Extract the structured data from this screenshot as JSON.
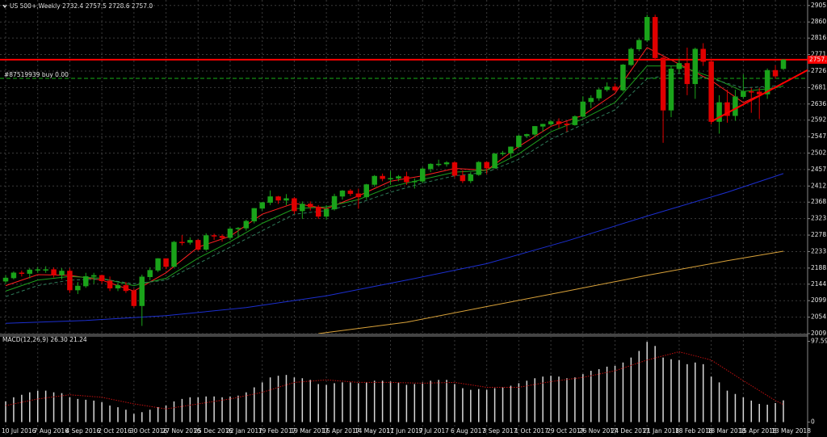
{
  "chart_data": {
    "type": "candlestick",
    "header": "US 500+,Weekly  2732.4 2757.5 2728.6 2757.0",
    "categories": [
      "10 Jul 2016",
      null,
      null,
      null,
      "7 Aug 2016",
      null,
      null,
      null,
      "4 Sep 2016",
      null,
      null,
      null,
      "2 Oct 2016",
      null,
      null,
      null,
      "30 Oct 2016",
      null,
      null,
      null,
      "27 Nov 2016",
      null,
      null,
      null,
      "25 Dec 2016",
      null,
      null,
      null,
      "22 Jan 2017",
      null,
      null,
      null,
      "19 Feb 2017",
      null,
      null,
      null,
      "19 Mar 2017",
      null,
      null,
      null,
      "16 Apr 2017",
      null,
      null,
      null,
      "14 May 2017",
      null,
      null,
      null,
      "11 Jun 2017",
      null,
      null,
      null,
      "9 Jul 2017",
      null,
      null,
      null,
      "6 Aug 2017",
      null,
      null,
      null,
      "3 Sep 2017",
      null,
      null,
      null,
      "1 Oct 2017",
      null,
      null,
      null,
      "29 Oct 2017",
      null,
      null,
      null,
      "26 Nov 2017",
      null,
      null,
      null,
      "24 Dec 2017",
      null,
      null,
      null,
      "21 Jan 2018",
      null,
      null,
      null,
      "18 Feb 2018",
      null,
      null,
      null,
      "18 Mar 2018",
      null,
      null,
      null,
      "15 Apr 2018",
      null,
      null,
      null,
      "13 May 2018",
      null
    ],
    "open": [
      2152,
      2161,
      2175,
      2173,
      2183,
      2184,
      2184,
      2169,
      2180,
      2128,
      2139,
      2165,
      2168,
      2153,
      2133,
      2141,
      2126,
      2085,
      2164,
      2182,
      2214,
      2192,
      2259,
      2258,
      2264,
      2239,
      2277,
      2275,
      2271,
      2295,
      2297,
      2316,
      2351,
      2367,
      2383,
      2373,
      2378,
      2344,
      2363,
      2355,
      2329,
      2349,
      2384,
      2399,
      2391,
      2382,
      2416,
      2439,
      2432,
      2433,
      2438,
      2423,
      2425,
      2459,
      2472,
      2472,
      2476,
      2441,
      2426,
      2443,
      2477,
      2461,
      2500,
      2502,
      2519,
      2549,
      2553,
      2575,
      2581,
      2588,
      2582,
      2579,
      2602,
      2642,
      2652,
      2675,
      2683,
      2674,
      2743,
      2786,
      2810,
      2873,
      2762,
      2619,
      2732,
      2747,
      2691,
      2786,
      2752,
      2588,
      2640,
      2604,
      2656,
      2670,
      2669,
      2663,
      2728,
      2732.4
    ],
    "high": [
      2169,
      2179,
      2181,
      2188,
      2191,
      2193,
      2190,
      2188,
      2188,
      2150,
      2175,
      2175,
      2170,
      2165,
      2147,
      2150,
      2132,
      2170,
      2190,
      2215,
      2214,
      2262,
      2278,
      2272,
      2267,
      2283,
      2282,
      2280,
      2300,
      2300,
      2320,
      2352,
      2368,
      2400,
      2385,
      2390,
      2382,
      2370,
      2370,
      2360,
      2360,
      2391,
      2401,
      2404,
      2405,
      2418,
      2442,
      2446,
      2453,
      2442,
      2451,
      2433,
      2463,
      2474,
      2484,
      2480,
      2480,
      2455,
      2450,
      2480,
      2480,
      2502,
      2508,
      2520,
      2552,
      2555,
      2576,
      2582,
      2592,
      2597,
      2590,
      2605,
      2657,
      2660,
      2680,
      2695,
      2692,
      2745,
      2790,
      2815,
      2880,
      2880,
      2765,
      2740,
      2760,
      2790,
      2790,
      2802,
      2760,
      2660,
      2675,
      2675,
      2717,
      2680,
      2680,
      2733,
      2742,
      2757.5
    ],
    "low": [
      2145,
      2157,
      2165,
      2160,
      2175,
      2175,
      2162,
      2157,
      2120,
      2117,
      2134,
      2145,
      2145,
      2125,
      2125,
      2120,
      2080,
      2030,
      2155,
      2177,
      2185,
      2190,
      2250,
      2252,
      2235,
      2235,
      2265,
      2260,
      2265,
      2270,
      2290,
      2310,
      2345,
      2360,
      2363,
      2360,
      2335,
      2322,
      2345,
      2322,
      2320,
      2345,
      2375,
      2385,
      2350,
      2375,
      2410,
      2425,
      2415,
      2425,
      2415,
      2405,
      2420,
      2450,
      2465,
      2465,
      2435,
      2420,
      2420,
      2440,
      2445,
      2460,
      2495,
      2490,
      2515,
      2543,
      2545,
      2560,
      2575,
      2570,
      2560,
      2577,
      2600,
      2625,
      2645,
      2670,
      2670,
      2670,
      2740,
      2780,
      2805,
      2755,
      2530,
      2600,
      2720,
      2660,
      2650,
      2740,
      2580,
      2555,
      2585,
      2590,
      2650,
      2612,
      2595,
      2650,
      2705,
      2728.6
    ],
    "close": [
      2161,
      2175,
      2173,
      2183,
      2184,
      2184,
      2169,
      2180,
      2128,
      2139,
      2165,
      2168,
      2153,
      2133,
      2141,
      2126,
      2085,
      2164,
      2182,
      2214,
      2192,
      2259,
      2258,
      2264,
      2239,
      2277,
      2275,
      2271,
      2295,
      2297,
      2316,
      2351,
      2367,
      2383,
      2373,
      2378,
      2344,
      2363,
      2355,
      2329,
      2349,
      2384,
      2399,
      2391,
      2382,
      2416,
      2439,
      2432,
      2433,
      2438,
      2423,
      2425,
      2459,
      2472,
      2472,
      2476,
      2441,
      2426,
      2443,
      2477,
      2461,
      2500,
      2502,
      2519,
      2549,
      2553,
      2575,
      2581,
      2588,
      2582,
      2579,
      2602,
      2642,
      2652,
      2675,
      2683,
      2674,
      2743,
      2786,
      2810,
      2873,
      2762,
      2619,
      2732,
      2747,
      2691,
      2786,
      2752,
      2588,
      2640,
      2604,
      2656,
      2670,
      2669,
      2663,
      2728,
      2712,
      2757
    ],
    "bull_color": "#1aa31a",
    "bear_color": "#e00000",
    "series": [
      {
        "color": "#ff2020",
        "x": [
          0,
          4,
          8,
          12,
          16,
          20,
          24,
          28,
          32,
          36,
          40,
          44,
          48,
          52,
          56,
          60,
          64,
          68,
          72,
          76,
          80,
          84,
          88,
          92,
          96,
          97
        ],
        "values": [
          2140,
          2170,
          2168,
          2155,
          2125,
          2175,
          2245,
          2275,
          2335,
          2365,
          2350,
          2385,
          2425,
          2440,
          2460,
          2455,
          2520,
          2575,
          2605,
          2665,
          2790,
          2745,
          2700,
          2640,
          2680,
          2695
        ]
      },
      {
        "color": "#1e9e1e",
        "x": [
          0,
          4,
          8,
          12,
          16,
          20,
          24,
          28,
          32,
          36,
          40,
          44,
          48,
          52,
          56,
          60,
          64,
          68,
          72,
          76,
          80,
          84,
          88,
          92,
          96,
          97
        ],
        "values": [
          2125,
          2155,
          2165,
          2160,
          2140,
          2160,
          2215,
          2260,
          2310,
          2350,
          2355,
          2375,
          2410,
          2430,
          2450,
          2455,
          2500,
          2560,
          2595,
          2640,
          2740,
          2740,
          2710,
          2670,
          2680,
          2685
        ]
      },
      {
        "color": "#2e7d5a",
        "dashed": true,
        "x": [
          0,
          4,
          8,
          12,
          16,
          20,
          24,
          28,
          32,
          36,
          40,
          44,
          48,
          52,
          56,
          60,
          64,
          68,
          72,
          76,
          80,
          84,
          88,
          92,
          96,
          97
        ],
        "values": [
          2110,
          2140,
          2155,
          2158,
          2145,
          2155,
          2200,
          2245,
          2290,
          2335,
          2345,
          2365,
          2395,
          2420,
          2440,
          2450,
          2485,
          2540,
          2580,
          2620,
          2705,
          2720,
          2705,
          2680,
          2685,
          2688
        ]
      },
      {
        "color": "#1c2fd0",
        "x": [
          0,
          10,
          20,
          30,
          40,
          50,
          60,
          70,
          80,
          90,
          97
        ],
        "values": [
          2037,
          2045,
          2058,
          2080,
          2112,
          2155,
          2200,
          2262,
          2330,
          2395,
          2446
        ]
      },
      {
        "color": "#d9a23a",
        "x": [
          39,
          50,
          60,
          70,
          80,
          90,
          97
        ],
        "values": [
          2009,
          2040,
          2083,
          2125,
          2168,
          2208,
          2234
        ]
      }
    ],
    "trendline": {
      "color": "#ff0000",
      "x": [
        88,
        101
      ],
      "values": [
        2588,
        2740
      ]
    },
    "hlines": [
      {
        "value": 2757,
        "label": "2757.0",
        "color": "#ff0000"
      },
      {
        "value": 2706,
        "label": "#87519939 buy 0.00",
        "color": "#19b019",
        "dashed": true
      }
    ],
    "ylim": [
      2009,
      2920
    ],
    "yticks": [
      {
        "value": 2905,
        "label": "2905.0"
      },
      {
        "value": 2860,
        "label": "2860.0"
      },
      {
        "value": 2816,
        "label": "2816.0"
      },
      {
        "value": 2771,
        "label": "2771.0"
      },
      {
        "value": 2726,
        "label": "2726.0"
      },
      {
        "value": 2681,
        "label": "2681.0"
      },
      {
        "value": 2636,
        "label": "2636.0"
      },
      {
        "value": 2592,
        "label": "2592.0"
      },
      {
        "value": 2547,
        "label": "2547.0"
      },
      {
        "value": 2502,
        "label": "2502.0"
      },
      {
        "value": 2457,
        "label": "2457.0"
      },
      {
        "value": 2412,
        "label": "2412.0"
      },
      {
        "value": 2368,
        "label": "2368.0"
      },
      {
        "value": 2323,
        "label": "2323.0"
      },
      {
        "value": 2278,
        "label": "2278.0"
      },
      {
        "value": 2233,
        "label": "2233.0"
      },
      {
        "value": 2188,
        "label": "2188.0"
      },
      {
        "value": 2144,
        "label": "2144.0"
      },
      {
        "value": 2099,
        "label": "2099.0"
      },
      {
        "value": 2054,
        "label": "2054.0"
      },
      {
        "value": 2009,
        "label": "2009.0"
      }
    ],
    "grid": true,
    "indicator": {
      "title": "MACD(12,26,9) 26.30 21.24",
      "color": "#d8d8d8",
      "histogram": [
        25,
        30,
        33,
        36,
        38,
        38,
        36,
        35,
        30,
        28,
        27,
        26,
        24,
        20,
        18,
        15,
        10,
        12,
        15,
        18,
        20,
        25,
        28,
        30,
        30,
        31,
        31,
        30,
        31,
        32,
        36,
        42,
        48,
        54,
        56,
        57,
        54,
        53,
        51,
        46,
        45,
        47,
        48,
        48,
        47,
        48,
        50,
        50,
        49,
        48,
        45,
        46,
        48,
        50,
        51,
        51,
        46,
        41,
        39,
        40,
        39,
        41,
        42,
        44,
        47,
        50,
        53,
        55,
        56,
        55,
        53,
        54,
        58,
        62,
        64,
        67,
        68,
        72,
        78,
        86,
        97,
        92,
        78,
        76,
        75,
        70,
        72,
        70,
        55,
        48,
        38,
        34,
        30,
        26,
        22,
        21,
        23,
        26.3
      ],
      "signal": {
        "color": "#c01010",
        "x": [
          0,
          4,
          8,
          12,
          16,
          20,
          24,
          28,
          32,
          36,
          40,
          44,
          48,
          52,
          56,
          60,
          64,
          68,
          72,
          76,
          80,
          84,
          88,
          92,
          96,
          97
        ],
        "values": [
          20,
          28,
          33,
          30,
          22,
          16,
          22,
          28,
          36,
          48,
          51,
          48,
          48,
          47,
          48,
          42,
          42,
          49,
          54,
          62,
          75,
          85,
          75,
          50,
          26,
          21.24
        ]
      },
      "ylim": [
        -18,
        104
      ],
      "yticks": [
        97.59,
        0
      ]
    }
  }
}
